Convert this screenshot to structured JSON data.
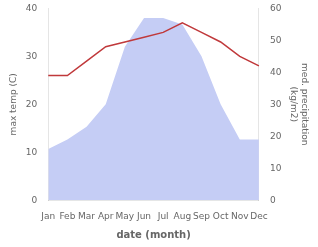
{
  "chart_data": {
    "type": "line",
    "xlabel": "date (month)",
    "ylabel": "max temp (C)",
    "y2label": "med. precipitation\n(kg/m2)",
    "categories": [
      "Jan",
      "Feb",
      "Mar",
      "Apr",
      "May",
      "Jun",
      "Jul",
      "Aug",
      "Sep",
      "Oct",
      "Nov",
      "Dec"
    ],
    "series": [
      {
        "type": "area",
        "axis": "y2",
        "color": "#c5cdf5",
        "values": [
          16,
          19,
          23,
          30,
          48,
          57,
          57,
          55,
          45,
          30,
          19,
          19
        ]
      },
      {
        "type": "line",
        "color": "#c0393b",
        "values": [
          26,
          26,
          29,
          32,
          33,
          34,
          35,
          37,
          35,
          33,
          30,
          28
        ]
      }
    ],
    "ylim": [
      0,
      40
    ],
    "yticks": [
      0,
      10,
      20,
      30,
      40
    ],
    "y2lim": [
      0,
      60
    ],
    "y2ticks": [
      0,
      10,
      20,
      30,
      40,
      50,
      60
    ],
    "grid": false
  }
}
